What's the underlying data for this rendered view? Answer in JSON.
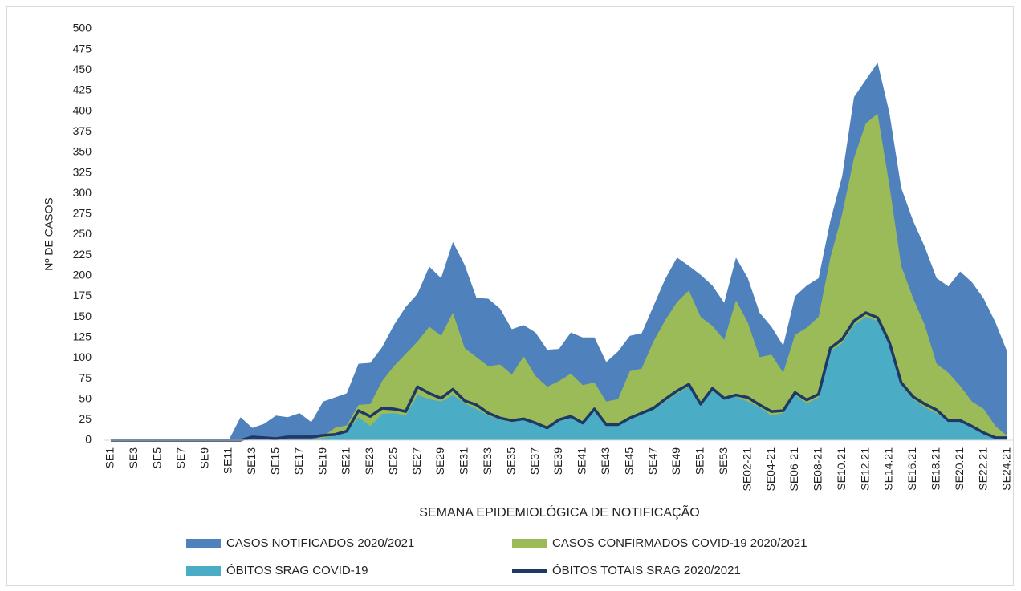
{
  "chart_data": {
    "type": "area",
    "x_label": "SEMANA EPIDEMIOLÓGICA DE NOTIFICAÇÃO",
    "y_label": "Nº DE CASOS",
    "categories": [
      "SE1",
      null,
      "SE3",
      null,
      "SE5",
      null,
      "SE7",
      null,
      "SE9",
      null,
      "SE11",
      null,
      "SE13",
      null,
      "SE15",
      null,
      "SE17",
      null,
      "SE19",
      null,
      "SE21",
      null,
      "SE23",
      null,
      "SE25",
      null,
      "SE27",
      null,
      "SE29",
      null,
      "SE31",
      null,
      "SE33",
      null,
      "SE35",
      null,
      "SE37",
      null,
      "SE39",
      null,
      "SE41",
      null,
      "SE43",
      null,
      "SE45",
      null,
      "SE47",
      null,
      "SE49",
      null,
      "SE51",
      null,
      "SE53",
      null,
      "SE02-21",
      null,
      "SE04-21",
      null,
      "SE06-21",
      null,
      "SE08-21",
      null,
      "SE10.21",
      null,
      "SE12.21",
      null,
      "SE14.21",
      null,
      "SE16.21",
      null,
      "SE18.21",
      null,
      "SE20.21",
      null,
      "SE22.21",
      null,
      "SE24.21"
    ],
    "series": [
      {
        "name": "CASOS NOTIFICADOS 2020/2021",
        "kind": "area",
        "color": "#4f81bd",
        "values": [
          0,
          0,
          0,
          0,
          0,
          0,
          0,
          0,
          0,
          0,
          0,
          28,
          15,
          20,
          30,
          28,
          33,
          22,
          47,
          52,
          57,
          93,
          94,
          113,
          140,
          162,
          178,
          211,
          197,
          241,
          213,
          173,
          172,
          160,
          135,
          140,
          131,
          110,
          111,
          131,
          125,
          125,
          95,
          108,
          127,
          130,
          163,
          196,
          222,
          212,
          201,
          188,
          167,
          222,
          197,
          155,
          138,
          115,
          175,
          188,
          197,
          267,
          321,
          417,
          438,
          459,
          398,
          307,
          267,
          235,
          197,
          187,
          205,
          192,
          172,
          143,
          107
        ]
      },
      {
        "name": "CASOS CONFIRMADOS COVID-19 2020/2021",
        "kind": "area",
        "color": "#9bbb59",
        "values": [
          0,
          0,
          0,
          0,
          0,
          0,
          0,
          0,
          0,
          0,
          0,
          0,
          0,
          0,
          0,
          0,
          0,
          0,
          5,
          15,
          18,
          43,
          44,
          72,
          90,
          105,
          120,
          138,
          127,
          155,
          112,
          101,
          90,
          92,
          80,
          102,
          78,
          65,
          72,
          81,
          67,
          70,
          47,
          50,
          84,
          87,
          120,
          146,
          168,
          182,
          150,
          139,
          122,
          170,
          143,
          101,
          104,
          82,
          128,
          137,
          150,
          222,
          275,
          343,
          385,
          397,
          310,
          212,
          173,
          140,
          93,
          82,
          66,
          47,
          38,
          17,
          5
        ]
      },
      {
        "name": "ÓBITOS SRAG COVID-19",
        "kind": "area",
        "color": "#4bacc6",
        "values": [
          0,
          0,
          0,
          0,
          0,
          0,
          0,
          0,
          0,
          0,
          0,
          0,
          0,
          0,
          0,
          0,
          0,
          0,
          3,
          5,
          10,
          28,
          17,
          32,
          33,
          30,
          55,
          50,
          47,
          55,
          45,
          38,
          30,
          25,
          22,
          25,
          20,
          15,
          23,
          28,
          20,
          35,
          18,
          18,
          27,
          32,
          37,
          47,
          57,
          65,
          43,
          60,
          50,
          53,
          47,
          40,
          30,
          33,
          55,
          45,
          52,
          108,
          118,
          140,
          150,
          145,
          115,
          67,
          50,
          40,
          33,
          23,
          23,
          17,
          8,
          3,
          3
        ]
      },
      {
        "name": "ÓBITOS TOTAIS SRAG 2020/2021",
        "kind": "line",
        "color": "#1f3864",
        "values": [
          0,
          0,
          0,
          0,
          0,
          0,
          0,
          0,
          0,
          0,
          0,
          0,
          4,
          3,
          2,
          4,
          4,
          4,
          6,
          7,
          11,
          36,
          29,
          39,
          38,
          35,
          65,
          57,
          51,
          62,
          48,
          43,
          33,
          27,
          24,
          26,
          21,
          15,
          25,
          29,
          21,
          38,
          19,
          19,
          27,
          33,
          39,
          50,
          60,
          68,
          44,
          63,
          51,
          55,
          52,
          43,
          35,
          36,
          58,
          49,
          56,
          112,
          123,
          145,
          155,
          149,
          119,
          70,
          53,
          44,
          37,
          24,
          24,
          17,
          9,
          3,
          3
        ]
      }
    ],
    "ylim": [
      0,
      500
    ],
    "yticks": [
      0,
      25,
      50,
      75,
      100,
      125,
      150,
      175,
      200,
      225,
      250,
      275,
      300,
      325,
      350,
      375,
      400,
      425,
      450,
      475,
      500
    ],
    "grid": false,
    "legend": "bottom"
  }
}
